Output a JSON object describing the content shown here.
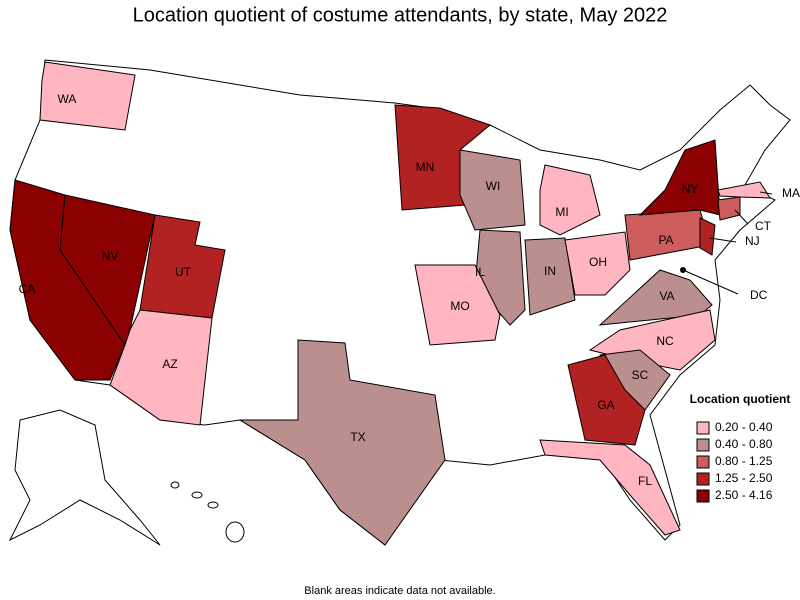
{
  "title": "Location quotient of costume attendants, by state, May 2022",
  "states": [
    {
      "label": "WA",
      "color": "#ffb6c1"
    },
    {
      "label": "CA",
      "color": "#8b0000"
    },
    {
      "label": "NV",
      "color": "#8b0000"
    },
    {
      "label": "UT",
      "color": "#b22222"
    },
    {
      "label": "AZ",
      "color": "#ffb6c1"
    },
    {
      "label": "MN",
      "color": "#b22222"
    },
    {
      "label": "WI",
      "color": "#bc8f8f"
    },
    {
      "label": "MI",
      "color": "#ffb6c1"
    },
    {
      "label": "IL",
      "color": "#bc8f8f"
    },
    {
      "label": "IN",
      "color": "#bc8f8f"
    },
    {
      "label": "OH",
      "color": "#ffb6c1"
    },
    {
      "label": "MO",
      "color": "#ffb6c1"
    },
    {
      "label": "PA",
      "color": "#cd5c5c"
    },
    {
      "label": "NY",
      "color": "#8b0000"
    },
    {
      "label": "NJ",
      "color": "#b22222"
    },
    {
      "label": "CT",
      "color": "#cd5c5c"
    },
    {
      "label": "MA",
      "color": "#ffb6c1"
    },
    {
      "label": "DC",
      "color": "#000000"
    },
    {
      "label": "VA",
      "color": "#bc8f8f"
    },
    {
      "label": "NC",
      "color": "#ffb6c1"
    },
    {
      "label": "SC",
      "color": "#bc8f8f"
    },
    {
      "label": "GA",
      "color": "#b22222"
    },
    {
      "label": "TX",
      "color": "#bc8f8f"
    },
    {
      "label": "FL",
      "color": "#ffb6c1"
    }
  ],
  "legend": {
    "title": "Location quotient",
    "items": [
      {
        "label": "0.20 - 0.40",
        "color": "#ffb6c1"
      },
      {
        "label": "0.40 - 0.80",
        "color": "#bc8f8f"
      },
      {
        "label": "0.80 - 1.25",
        "color": "#cd5c5c"
      },
      {
        "label": "1.25 - 2.50",
        "color": "#b22222"
      },
      {
        "label": "2.50 - 4.16",
        "color": "#8b0000"
      }
    ]
  },
  "note": "Blank areas indicate data not available."
}
